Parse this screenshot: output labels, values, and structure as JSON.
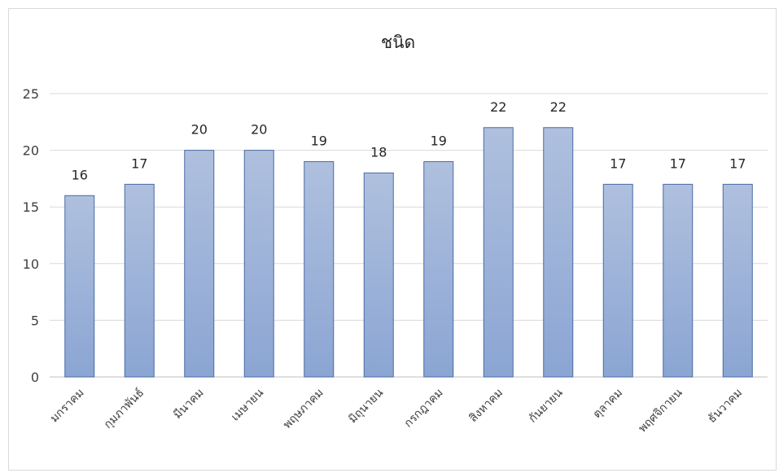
{
  "chart_data": {
    "type": "bar",
    "title": "ชนิด",
    "xlabel": "",
    "ylabel": "",
    "categories": [
      "มกราคม",
      "กุมภาพันธ์",
      "มีนาคม",
      "เมษายน",
      "พฤษภาคม",
      "มิถุนายน",
      "กรกฎาคม",
      "สิงหาคม",
      "กันยายน",
      "ตุลาคม",
      "พฤศจิกายน",
      "ธันวาคม"
    ],
    "values": [
      16,
      17,
      20,
      20,
      19,
      18,
      19,
      22,
      22,
      17,
      17,
      17
    ],
    "yticks": [
      "0",
      "5",
      "10",
      "15",
      "20",
      "25"
    ],
    "ylim": [
      0,
      25
    ],
    "grid": true,
    "legend": "none",
    "colors": {
      "bar_top": "#afc0de",
      "bar_bottom": "#8ba5d3",
      "bar_stroke": "#4a6aa5",
      "grid": "#d9d9d9"
    }
  }
}
